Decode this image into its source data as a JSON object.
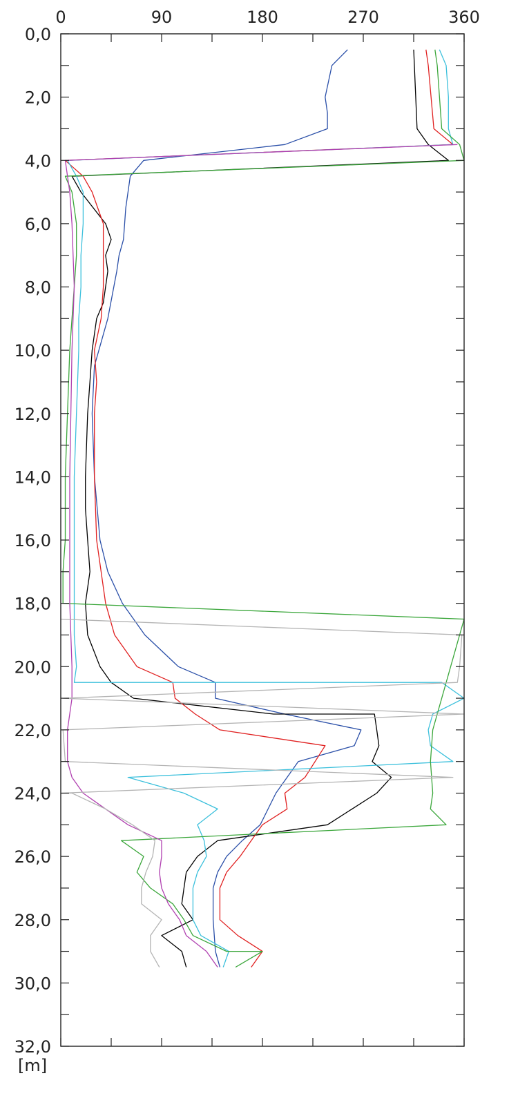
{
  "chart_data": {
    "type": "line",
    "orientation": "depth-profile",
    "x_ticks": [
      0,
      90,
      180,
      270,
      360
    ],
    "y_ticks": [
      "0,0",
      "2,0",
      "4,0",
      "6,0",
      "8,0",
      "10,0",
      "12,0",
      "14,0",
      "16,0",
      "18,0",
      "20,0",
      "22,0",
      "24,0",
      "26,0",
      "28,0",
      "30,0",
      "32,0"
    ],
    "ylabel": "[m]",
    "xlim": [
      0,
      360
    ],
    "ylim": [
      0,
      32
    ],
    "y_inverted": true,
    "grid": false,
    "series": [
      {
        "color": "#2a4fa8",
        "points": [
          [
            256,
            0.5
          ],
          [
            242,
            1
          ],
          [
            236,
            2
          ],
          [
            238,
            2.5
          ],
          [
            238,
            3
          ],
          [
            200,
            3.5
          ],
          [
            74,
            4
          ],
          [
            62,
            4.5
          ],
          [
            58,
            5.5
          ],
          [
            56,
            6.5
          ],
          [
            52,
            7
          ],
          [
            50,
            7.5
          ],
          [
            42,
            9
          ],
          [
            30,
            10.5
          ],
          [
            28,
            12
          ],
          [
            30,
            14
          ],
          [
            35,
            16
          ],
          [
            42,
            17
          ],
          [
            55,
            18
          ],
          [
            75,
            19
          ],
          [
            105,
            20
          ],
          [
            138,
            20.5
          ],
          [
            138,
            21
          ],
          [
            200,
            21.5
          ],
          [
            268,
            22
          ],
          [
            262,
            22.5
          ],
          [
            212,
            23
          ],
          [
            192,
            24
          ],
          [
            178,
            25
          ],
          [
            162,
            25.5
          ],
          [
            148,
            26
          ],
          [
            140,
            26.5
          ],
          [
            136,
            27
          ],
          [
            136,
            28
          ],
          [
            138,
            29
          ],
          [
            142,
            29.5
          ]
        ]
      },
      {
        "color": "#000000",
        "points": [
          [
            315,
            0.5
          ],
          [
            318,
            3
          ],
          [
            328,
            3.5
          ],
          [
            346,
            4
          ],
          [
            10,
            4.5
          ],
          [
            18,
            5
          ],
          [
            40,
            6
          ],
          [
            45,
            6.5
          ],
          [
            40,
            7
          ],
          [
            42,
            7.5
          ],
          [
            38,
            8.5
          ],
          [
            32,
            9
          ],
          [
            28,
            10
          ],
          [
            26,
            11
          ],
          [
            24,
            12
          ],
          [
            22,
            14
          ],
          [
            22,
            15
          ],
          [
            24,
            16
          ],
          [
            26,
            17
          ],
          [
            22,
            18
          ],
          [
            24,
            19
          ],
          [
            35,
            20
          ],
          [
            45,
            20.5
          ],
          [
            65,
            21
          ],
          [
            190,
            21.5
          ],
          [
            280,
            21.5
          ],
          [
            282,
            22
          ],
          [
            284,
            22.5
          ],
          [
            278,
            23
          ],
          [
            295,
            23.5
          ],
          [
            282,
            24
          ],
          [
            260,
            24.5
          ],
          [
            238,
            25
          ],
          [
            140,
            25.5
          ],
          [
            122,
            26
          ],
          [
            112,
            26.5
          ],
          [
            110,
            27
          ],
          [
            108,
            27.5
          ],
          [
            118,
            28
          ],
          [
            90,
            28.5
          ],
          [
            108,
            29
          ],
          [
            112,
            29.5
          ]
        ]
      },
      {
        "color": "#e02020",
        "points": [
          [
            326,
            0.5
          ],
          [
            328,
            1
          ],
          [
            333,
            3
          ],
          [
            350,
            3.5
          ],
          [
            4,
            4
          ],
          [
            20,
            4.5
          ],
          [
            28,
            5
          ],
          [
            38,
            6
          ],
          [
            38,
            7
          ],
          [
            38,
            8
          ],
          [
            36,
            9
          ],
          [
            30,
            10
          ],
          [
            32,
            11
          ],
          [
            30,
            12
          ],
          [
            30,
            14
          ],
          [
            32,
            16
          ],
          [
            36,
            17
          ],
          [
            40,
            18
          ],
          [
            48,
            19
          ],
          [
            68,
            20
          ],
          [
            100,
            20.5
          ],
          [
            102,
            21
          ],
          [
            120,
            21.5
          ],
          [
            142,
            22
          ],
          [
            236,
            22.5
          ],
          [
            218,
            23.5
          ],
          [
            200,
            24
          ],
          [
            202,
            24.5
          ],
          [
            180,
            25
          ],
          [
            160,
            26
          ],
          [
            148,
            26.5
          ],
          [
            142,
            27
          ],
          [
            142,
            28
          ],
          [
            158,
            28.5
          ],
          [
            180,
            29
          ],
          [
            170,
            29.5
          ]
        ]
      },
      {
        "color": "#3cc0dc",
        "points": [
          [
            338,
            0.5
          ],
          [
            344,
            1
          ],
          [
            346,
            2
          ],
          [
            346,
            3
          ],
          [
            350,
            3.5
          ],
          [
            6,
            4
          ],
          [
            14,
            4.5
          ],
          [
            20,
            5
          ],
          [
            20,
            6
          ],
          [
            18,
            7
          ],
          [
            18,
            8
          ],
          [
            16,
            9
          ],
          [
            16,
            10
          ],
          [
            14,
            12
          ],
          [
            12,
            14
          ],
          [
            12,
            16
          ],
          [
            12,
            18
          ],
          [
            12,
            19
          ],
          [
            14,
            20
          ],
          [
            12,
            20.5
          ],
          [
            340,
            20.5
          ],
          [
            360,
            21
          ],
          [
            332,
            21.5
          ],
          [
            328,
            22
          ],
          [
            330,
            22.5
          ],
          [
            350,
            23
          ],
          [
            60,
            23.5
          ],
          [
            110,
            24
          ],
          [
            140,
            24.5
          ],
          [
            122,
            25
          ],
          [
            128,
            25.5
          ],
          [
            130,
            26
          ],
          [
            122,
            26.5
          ],
          [
            118,
            27
          ],
          [
            118,
            28
          ],
          [
            125,
            28.5
          ],
          [
            150,
            29
          ],
          [
            145,
            29.5
          ]
        ]
      },
      {
        "color": "#3aa63a",
        "points": [
          [
            334,
            0.5
          ],
          [
            336,
            1
          ],
          [
            340,
            3
          ],
          [
            356,
            3.5
          ],
          [
            360,
            4
          ],
          [
            4,
            4.5
          ],
          [
            10,
            5
          ],
          [
            14,
            6
          ],
          [
            14,
            7
          ],
          [
            12,
            8
          ],
          [
            10,
            9
          ],
          [
            8,
            10
          ],
          [
            6,
            12
          ],
          [
            4,
            14
          ],
          [
            4,
            16
          ],
          [
            2,
            17
          ],
          [
            2,
            18
          ],
          [
            360,
            18.5
          ],
          [
            356,
            19
          ],
          [
            348,
            20
          ],
          [
            340,
            21
          ],
          [
            332,
            22
          ],
          [
            330,
            23
          ],
          [
            332,
            24
          ],
          [
            330,
            24.5
          ],
          [
            344,
            25
          ],
          [
            54,
            25.5
          ],
          [
            74,
            26
          ],
          [
            68,
            26.5
          ],
          [
            80,
            27
          ],
          [
            100,
            27.5
          ],
          [
            110,
            28
          ],
          [
            118,
            28.5
          ],
          [
            148,
            29
          ],
          [
            180,
            29
          ],
          [
            156,
            29.5
          ]
        ]
      },
      {
        "color": "#b040b0",
        "points": [
          [
            354,
            3.5
          ],
          [
            4,
            4
          ],
          [
            8,
            5
          ],
          [
            10,
            6
          ],
          [
            12,
            8
          ],
          [
            10,
            10
          ],
          [
            8,
            14
          ],
          [
            8,
            16
          ],
          [
            8,
            18
          ],
          [
            10,
            20
          ],
          [
            10,
            21
          ],
          [
            6,
            22
          ],
          [
            6,
            23
          ],
          [
            10,
            23.5
          ],
          [
            20,
            24
          ],
          [
            60,
            25
          ],
          [
            90,
            25.5
          ],
          [
            90,
            26
          ],
          [
            88,
            26.5
          ],
          [
            90,
            27
          ],
          [
            96,
            27.5
          ],
          [
            106,
            28
          ],
          [
            112,
            28.5
          ],
          [
            130,
            29
          ],
          [
            140,
            29.5
          ]
        ]
      },
      {
        "color": "#b4b4b4",
        "points": [
          [
            0,
            18.5
          ],
          [
            358,
            19
          ],
          [
            356,
            20
          ],
          [
            354,
            20.5
          ],
          [
            2,
            21
          ],
          [
            360,
            21.5
          ],
          [
            2,
            22
          ],
          [
            4,
            23
          ],
          [
            350,
            23.5
          ],
          [
            0,
            24
          ],
          [
            10,
            24
          ],
          [
            40,
            24.5
          ],
          [
            64,
            25
          ],
          [
            84,
            25.5
          ],
          [
            82,
            26
          ],
          [
            76,
            26.5
          ],
          [
            72,
            27
          ],
          [
            72,
            27.5
          ],
          [
            90,
            28
          ],
          [
            80,
            28.5
          ],
          [
            80,
            29
          ],
          [
            88,
            29.5
          ]
        ]
      }
    ]
  }
}
